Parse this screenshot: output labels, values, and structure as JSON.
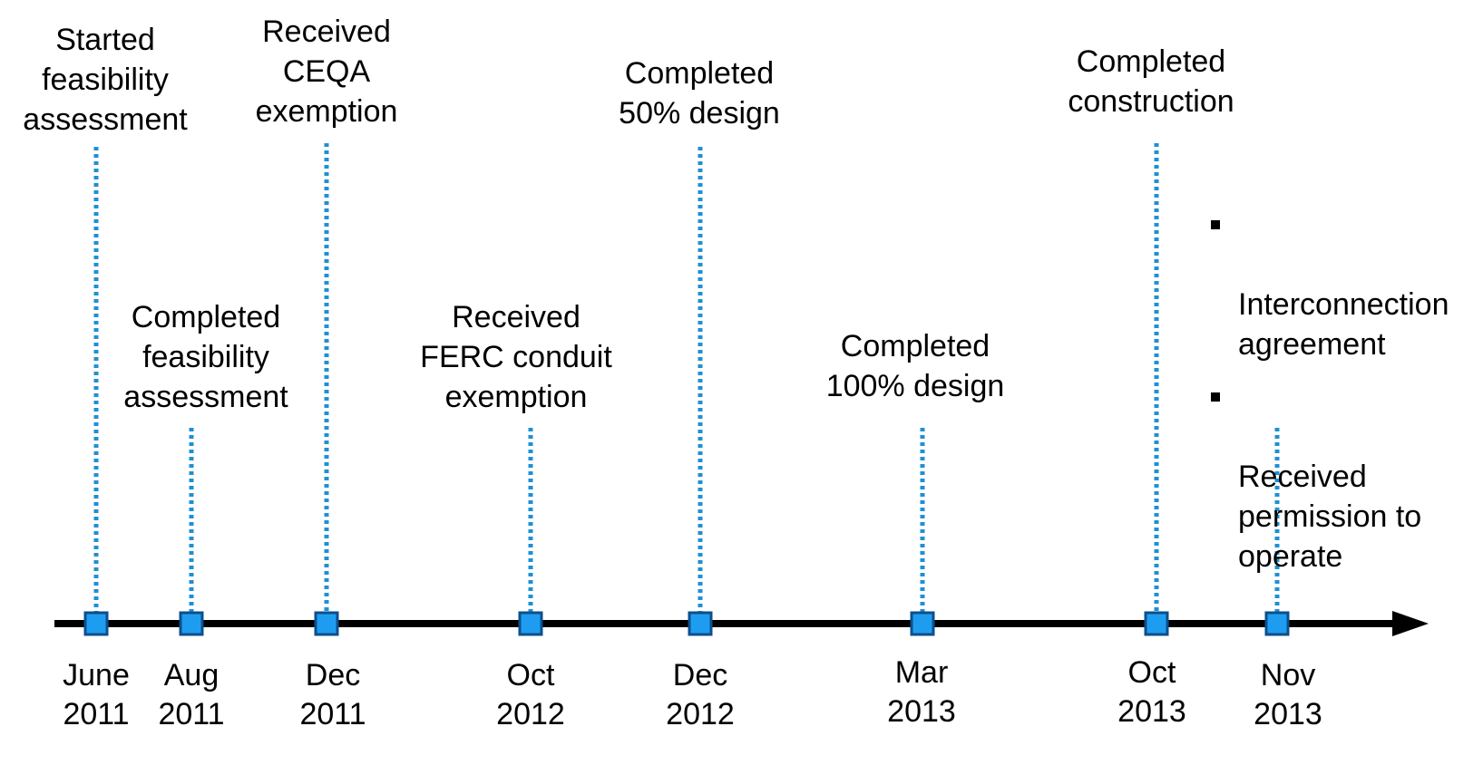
{
  "colors": {
    "axis": "#000000",
    "connector": "#1e90d4",
    "marker_fill": "#1e9df0",
    "marker_stroke": "#0d4f8b"
  },
  "milestones": [
    {
      "date": "June\n2011",
      "label": "Started\nfeasibility\nassessment"
    },
    {
      "date": "Aug\n2011",
      "label": "Completed\nfeasibility\nassessment"
    },
    {
      "date": "Dec\n2011",
      "label": "Received\nCEQA\nexemption"
    },
    {
      "date": "Oct\n2012",
      "label": "Received\nFERC conduit\nexemption"
    },
    {
      "date": "Dec\n2012",
      "label": "Completed\n50% design"
    },
    {
      "date": "Mar\n2013",
      "label": "Completed\n100% design"
    },
    {
      "date": "Oct\n2013",
      "label": "Completed\nconstruction"
    },
    {
      "date": "Nov\n2013",
      "label": ""
    }
  ],
  "nov_2013_items": [
    "Interconnection\nagreement",
    "Received\npermission to\noperate"
  ]
}
